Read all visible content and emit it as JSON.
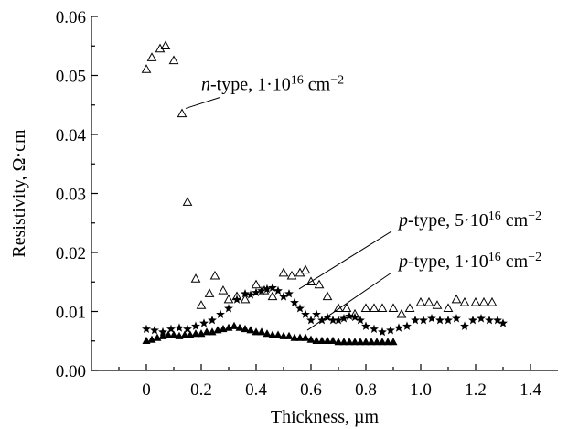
{
  "chart_data": {
    "type": "scatter",
    "title": "",
    "xlabel": "Thickness, µm",
    "ylabel": "Resistivity, Ω·cm",
    "xlim": [
      -0.2,
      1.5
    ],
    "ylim": [
      0.0,
      0.06
    ],
    "x_ticks": [
      0,
      0.2,
      0.4,
      0.6,
      0.8,
      1.0,
      1.2,
      1.4
    ],
    "x_tick_labels": [
      "0",
      "0.2",
      "0.4",
      "0.6",
      "0.8",
      "1.0",
      "1.2",
      "1.4"
    ],
    "y_ticks": [
      0,
      0.01,
      0.02,
      0.03,
      0.04,
      0.05,
      0.06
    ],
    "y_tick_labels": [
      "0.00",
      "0.01",
      "0.02",
      "0.03",
      "0.04",
      "0.05",
      "0.06"
    ],
    "grid": false,
    "series": [
      {
        "name": "n-type, 1·10¹⁶ cm⁻²",
        "label_parts": {
          "prefix": "n",
          "rest": "-type, 1·10",
          "exp": "16",
          "unit": " cm",
          "unit_exp": "−2"
        },
        "marker": "open-triangle",
        "x": [
          0.0,
          0.02,
          0.05,
          0.07,
          0.1,
          0.13,
          0.15,
          0.18,
          0.2,
          0.23,
          0.25,
          0.28,
          0.3,
          0.33,
          0.36,
          0.4,
          0.43,
          0.46,
          0.5,
          0.53,
          0.56,
          0.58,
          0.6,
          0.63,
          0.66,
          0.7,
          0.73,
          0.76,
          0.8,
          0.83,
          0.86,
          0.9,
          0.93,
          0.96,
          1.0,
          1.03,
          1.06,
          1.1,
          1.13,
          1.16,
          1.2,
          1.23,
          1.26
        ],
        "y": [
          0.051,
          0.053,
          0.0545,
          0.055,
          0.0525,
          0.0435,
          0.0285,
          0.0155,
          0.011,
          0.013,
          0.016,
          0.0135,
          0.012,
          0.0125,
          0.012,
          0.0145,
          0.0135,
          0.0125,
          0.0165,
          0.016,
          0.0165,
          0.017,
          0.015,
          0.0145,
          0.0125,
          0.0105,
          0.0105,
          0.0095,
          0.0105,
          0.0105,
          0.0105,
          0.0105,
          0.0095,
          0.0105,
          0.0115,
          0.0115,
          0.011,
          0.0105,
          0.012,
          0.0115,
          0.0115,
          0.0115,
          0.0115
        ]
      },
      {
        "name": "p-type, 5·10¹⁶ cm⁻²",
        "label_parts": {
          "prefix": "p",
          "rest": "-type, 5·10",
          "exp": "16",
          "unit": " cm",
          "unit_exp": "−2"
        },
        "marker": "filled-star",
        "x": [
          0.0,
          0.03,
          0.06,
          0.09,
          0.12,
          0.15,
          0.18,
          0.21,
          0.24,
          0.27,
          0.3,
          0.33,
          0.36,
          0.38,
          0.4,
          0.42,
          0.44,
          0.46,
          0.48,
          0.5,
          0.52,
          0.54,
          0.56,
          0.58,
          0.6,
          0.62,
          0.64,
          0.66,
          0.68,
          0.7,
          0.72,
          0.74,
          0.76,
          0.78,
          0.8,
          0.83,
          0.86,
          0.89,
          0.92,
          0.95,
          0.98,
          1.01,
          1.04,
          1.07,
          1.1,
          1.13,
          1.16,
          1.19,
          1.22,
          1.25,
          1.28,
          1.3
        ],
        "y": [
          0.007,
          0.0068,
          0.0065,
          0.007,
          0.0072,
          0.007,
          0.0075,
          0.008,
          0.0085,
          0.0095,
          0.0105,
          0.012,
          0.013,
          0.0128,
          0.0132,
          0.0135,
          0.0138,
          0.014,
          0.0135,
          0.0125,
          0.013,
          0.0115,
          0.0105,
          0.0095,
          0.0085,
          0.0095,
          0.0085,
          0.009,
          0.0085,
          0.0085,
          0.0088,
          0.0092,
          0.009,
          0.0085,
          0.0075,
          0.007,
          0.0065,
          0.0068,
          0.0072,
          0.0075,
          0.0085,
          0.0085,
          0.0088,
          0.0085,
          0.0085,
          0.0088,
          0.0075,
          0.0085,
          0.0088,
          0.0085,
          0.0085,
          0.008
        ]
      },
      {
        "name": "p-type, 1·10¹⁶ cm⁻²",
        "label_parts": {
          "prefix": "p",
          "rest": "-type, 1·10",
          "exp": "16",
          "unit": " cm",
          "unit_exp": "−2"
        },
        "marker": "filled-triangle",
        "x": [
          0.0,
          0.02,
          0.04,
          0.06,
          0.08,
          0.1,
          0.12,
          0.14,
          0.16,
          0.18,
          0.2,
          0.22,
          0.24,
          0.26,
          0.28,
          0.3,
          0.32,
          0.34,
          0.36,
          0.38,
          0.4,
          0.42,
          0.44,
          0.46,
          0.48,
          0.5,
          0.52,
          0.54,
          0.56,
          0.58,
          0.6,
          0.62,
          0.64,
          0.66,
          0.68,
          0.7,
          0.72,
          0.74,
          0.76,
          0.78,
          0.8,
          0.82,
          0.84,
          0.86,
          0.88,
          0.9
        ],
        "y": [
          0.005,
          0.0052,
          0.0055,
          0.0058,
          0.006,
          0.006,
          0.0058,
          0.006,
          0.006,
          0.0062,
          0.0062,
          0.0065,
          0.0065,
          0.0068,
          0.007,
          0.0072,
          0.0075,
          0.0072,
          0.007,
          0.0068,
          0.0065,
          0.0065,
          0.0062,
          0.006,
          0.006,
          0.0058,
          0.0058,
          0.0055,
          0.0055,
          0.0055,
          0.0052,
          0.005,
          0.005,
          0.005,
          0.005,
          0.0048,
          0.0048,
          0.0048,
          0.0048,
          0.0048,
          0.0048,
          0.0048,
          0.0048,
          0.0048,
          0.0048,
          0.0048
        ]
      }
    ],
    "annotations": [
      {
        "series_index": 0,
        "anchor": [
          0.13,
          0.0435
        ],
        "text_at": [
          0.2,
          0.0475
        ]
      },
      {
        "series_index": 1,
        "anchor": [
          0.55,
          0.0135
        ],
        "text_at": [
          0.92,
          0.0245
        ]
      },
      {
        "series_index": 2,
        "anchor": [
          0.58,
          0.0065
        ],
        "text_at": [
          0.92,
          0.0175
        ]
      }
    ]
  }
}
